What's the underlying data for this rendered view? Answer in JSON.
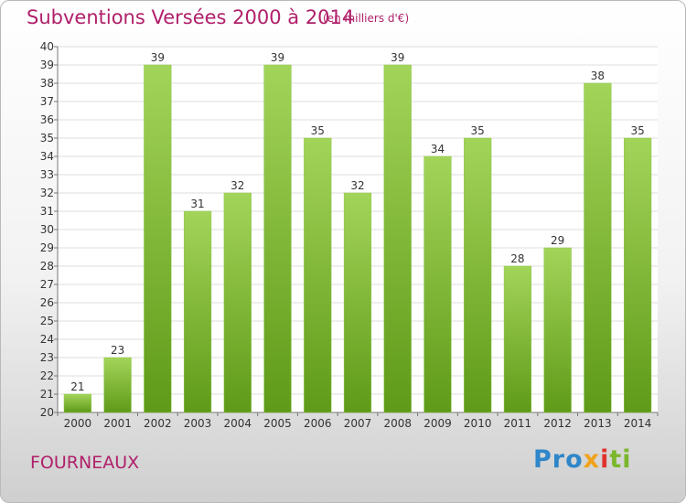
{
  "chart_data": {
    "type": "bar",
    "title": "Subventions Versées 2000 à 2014",
    "subtitle": "(en milliers d'€)",
    "categories": [
      "2000",
      "2001",
      "2002",
      "2003",
      "2004",
      "2005",
      "2006",
      "2007",
      "2008",
      "2009",
      "2010",
      "2011",
      "2012",
      "2013",
      "2014"
    ],
    "values": [
      21,
      23,
      39,
      31,
      32,
      39,
      35,
      32,
      39,
      34,
      35,
      28,
      29,
      38,
      35
    ],
    "ylim": [
      20,
      40
    ],
    "yticks": [
      20,
      21,
      22,
      23,
      24,
      25,
      26,
      27,
      28,
      29,
      30,
      31,
      32,
      33,
      34,
      35,
      36,
      37,
      38,
      39,
      40
    ],
    "grid": true,
    "bar_color": "#7ab72d"
  },
  "commune": "FOURNEAUX",
  "logo": {
    "p1": "Pro",
    "p2": "x",
    "p3": "i",
    "p4": "ti"
  }
}
